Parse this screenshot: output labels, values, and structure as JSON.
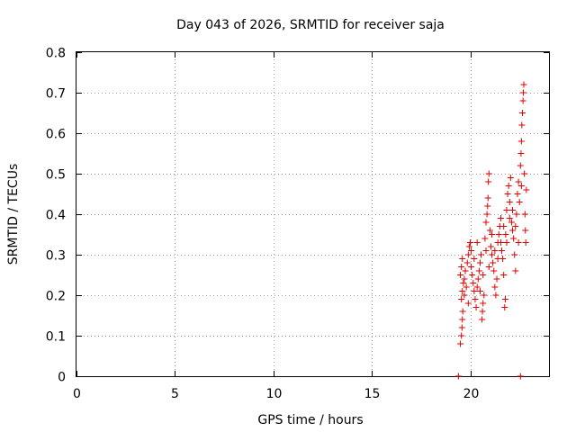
{
  "chart_data": {
    "type": "scatter",
    "title": "Day 043 of 2026, SRMTID for receiver saja",
    "xlabel": "GPS time / hours",
    "ylabel": "SRMTID / TECUs",
    "xlim": [
      0,
      24
    ],
    "ylim": [
      0,
      0.8
    ],
    "xticks": [
      0,
      5,
      10,
      15,
      20
    ],
    "xtick_labels": [
      "0",
      "5",
      "10",
      "15",
      "20"
    ],
    "yticks": [
      0,
      0.1,
      0.2,
      0.3,
      0.4,
      0.5,
      0.6,
      0.7,
      0.8
    ],
    "ytick_labels": [
      "0",
      "0.1",
      "0.2",
      "0.3",
      "0.4",
      "0.5",
      "0.6",
      "0.7",
      "0.8"
    ],
    "grid": true,
    "marker": "+",
    "color": "#e00000",
    "series": [
      {
        "name": "SRMTID",
        "points": [
          [
            19.4,
            0.0
          ],
          [
            22.55,
            0.0
          ],
          [
            19.5,
            0.08
          ],
          [
            19.55,
            0.1
          ],
          [
            19.58,
            0.12
          ],
          [
            19.6,
            0.14
          ],
          [
            19.62,
            0.16
          ],
          [
            19.55,
            0.19
          ],
          [
            19.6,
            0.21
          ],
          [
            19.65,
            0.23
          ],
          [
            19.5,
            0.25
          ],
          [
            19.55,
            0.27
          ],
          [
            19.6,
            0.29
          ],
          [
            19.7,
            0.24
          ],
          [
            19.75,
            0.26
          ],
          [
            19.8,
            0.22
          ],
          [
            19.85,
            0.28
          ],
          [
            19.9,
            0.3
          ],
          [
            19.95,
            0.32
          ],
          [
            20.0,
            0.33
          ],
          [
            20.05,
            0.27
          ],
          [
            20.1,
            0.25
          ],
          [
            20.15,
            0.23
          ],
          [
            20.2,
            0.21
          ],
          [
            20.25,
            0.19
          ],
          [
            20.3,
            0.17
          ],
          [
            20.35,
            0.22
          ],
          [
            20.4,
            0.24
          ],
          [
            20.45,
            0.26
          ],
          [
            20.5,
            0.28
          ],
          [
            20.55,
            0.3
          ],
          [
            20.6,
            0.14
          ],
          [
            20.62,
            0.16
          ],
          [
            20.65,
            0.18
          ],
          [
            20.7,
            0.2
          ],
          [
            20.75,
            0.34
          ],
          [
            20.8,
            0.38
          ],
          [
            20.85,
            0.4
          ],
          [
            20.88,
            0.42
          ],
          [
            20.9,
            0.44
          ],
          [
            20.92,
            0.48
          ],
          [
            20.95,
            0.5
          ],
          [
            21.0,
            0.36
          ],
          [
            21.05,
            0.32
          ],
          [
            21.1,
            0.3
          ],
          [
            21.15,
            0.28
          ],
          [
            21.2,
            0.26
          ],
          [
            21.25,
            0.22
          ],
          [
            21.3,
            0.2
          ],
          [
            21.35,
            0.24
          ],
          [
            21.4,
            0.33
          ],
          [
            21.45,
            0.35
          ],
          [
            21.5,
            0.37
          ],
          [
            21.55,
            0.39
          ],
          [
            21.6,
            0.31
          ],
          [
            21.65,
            0.29
          ],
          [
            21.7,
            0.25
          ],
          [
            21.75,
            0.17
          ],
          [
            21.78,
            0.19
          ],
          [
            21.8,
            0.35
          ],
          [
            21.85,
            0.41
          ],
          [
            21.9,
            0.45
          ],
          [
            21.95,
            0.47
          ],
          [
            22.0,
            0.43
          ],
          [
            22.05,
            0.49
          ],
          [
            22.1,
            0.38
          ],
          [
            22.15,
            0.36
          ],
          [
            22.2,
            0.34
          ],
          [
            22.25,
            0.3
          ],
          [
            22.3,
            0.26
          ],
          [
            22.35,
            0.4
          ],
          [
            22.4,
            0.45
          ],
          [
            22.45,
            0.48
          ],
          [
            22.5,
            0.43
          ],
          [
            22.55,
            0.52
          ],
          [
            22.58,
            0.55
          ],
          [
            22.6,
            0.58
          ],
          [
            22.62,
            0.62
          ],
          [
            22.65,
            0.65
          ],
          [
            22.68,
            0.68
          ],
          [
            22.7,
            0.7
          ],
          [
            22.72,
            0.72
          ],
          [
            22.75,
            0.5
          ],
          [
            22.78,
            0.4
          ],
          [
            22.8,
            0.36
          ],
          [
            22.82,
            0.33
          ],
          [
            22.85,
            0.46
          ],
          [
            19.7,
            0.2
          ],
          [
            19.9,
            0.18
          ],
          [
            20.05,
            0.31
          ],
          [
            20.2,
            0.29
          ],
          [
            20.35,
            0.33
          ],
          [
            20.5,
            0.21
          ],
          [
            20.65,
            0.25
          ],
          [
            20.8,
            0.31
          ],
          [
            20.95,
            0.27
          ],
          [
            21.1,
            0.35
          ],
          [
            21.25,
            0.31
          ],
          [
            21.4,
            0.29
          ],
          [
            21.55,
            0.33
          ],
          [
            21.7,
            0.37
          ],
          [
            21.85,
            0.33
          ],
          [
            22.0,
            0.39
          ],
          [
            22.15,
            0.41
          ],
          [
            22.3,
            0.37
          ],
          [
            22.45,
            0.33
          ],
          [
            22.6,
            0.47
          ]
        ]
      }
    ]
  }
}
